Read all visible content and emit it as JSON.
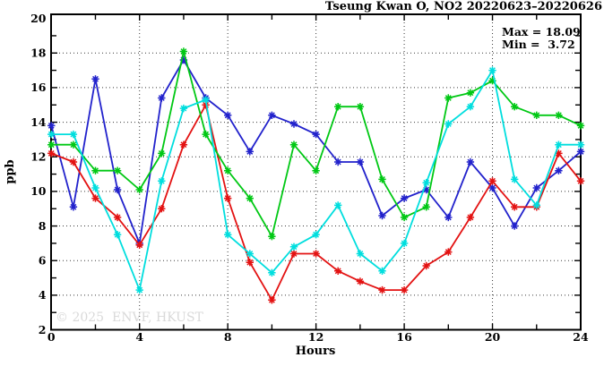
{
  "header": {
    "title": "Tseung Kwan O, NO2 20220623–20220626"
  },
  "stats": {
    "max_label": "Max = 18.09",
    "min_label": "Min =  3.72"
  },
  "watermark": "© 2025  ENVF, HKUST",
  "chart_data": {
    "type": "line",
    "title": "Tseung Kwan O, NO2 20220623–20220626",
    "xlabel": "Hours",
    "ylabel": "ppb",
    "xlim": [
      0,
      24
    ],
    "ylim": [
      2,
      20
    ],
    "grid": "dotted",
    "legend_position": "none",
    "marker": "asterisk",
    "max": 18.09,
    "min": 3.72,
    "x_major_ticks": [
      0,
      4,
      8,
      12,
      16,
      20,
      24
    ],
    "x_minor_ticks": [
      2,
      6,
      10,
      14,
      18,
      22
    ],
    "x_gridlines": [
      4,
      8,
      12,
      16,
      20
    ],
    "y_major_ticks": [
      2,
      4,
      6,
      8,
      10,
      12,
      14,
      16,
      18,
      20
    ],
    "y_minor_ticks": [
      3,
      5,
      7,
      9,
      11,
      13,
      15,
      17,
      19
    ],
    "y_gridlines": [
      4,
      6,
      8,
      10,
      12,
      14,
      16,
      18
    ],
    "x": [
      0,
      1,
      2,
      3,
      4,
      5,
      6,
      7,
      8,
      9,
      10,
      11,
      12,
      13,
      14,
      15,
      16,
      17,
      18,
      19,
      20,
      21,
      22,
      23,
      24
    ],
    "series": [
      {
        "name": "series-blue",
        "color": "#2222cc",
        "values": [
          13.8,
          9.1,
          16.5,
          10.1,
          7.0,
          15.4,
          17.6,
          15.4,
          14.4,
          12.3,
          14.4,
          13.9,
          13.3,
          11.7,
          11.7,
          8.6,
          9.6,
          10.1,
          8.5,
          11.7,
          10.2,
          8.0,
          10.2,
          11.2,
          12.3
        ]
      },
      {
        "name": "series-red",
        "color": "#e31212",
        "values": [
          12.2,
          11.7,
          9.6,
          8.5,
          6.9,
          9.0,
          12.7,
          15.0,
          9.6,
          5.9,
          3.72,
          6.4,
          6.4,
          5.4,
          4.8,
          4.3,
          4.3,
          5.7,
          6.5,
          8.5,
          10.6,
          9.1,
          9.1,
          12.2,
          10.6
        ]
      },
      {
        "name": "series-green",
        "color": "#00c814",
        "values": [
          12.7,
          12.7,
          11.2,
          11.2,
          10.1,
          12.2,
          18.09,
          13.3,
          11.2,
          9.6,
          7.4,
          12.7,
          11.2,
          14.9,
          14.9,
          10.7,
          8.5,
          9.1,
          15.4,
          15.7,
          16.4,
          14.9,
          14.4,
          14.4,
          13.8
        ]
      },
      {
        "name": "series-cyan",
        "color": "#00dede",
        "values": [
          13.3,
          13.3,
          10.2,
          7.5,
          4.3,
          10.6,
          14.8,
          15.3,
          7.5,
          6.4,
          5.3,
          6.8,
          7.5,
          9.2,
          6.4,
          5.4,
          7.0,
          10.5,
          13.9,
          14.9,
          17.0,
          10.7,
          9.2,
          12.7,
          12.7
        ]
      }
    ]
  }
}
